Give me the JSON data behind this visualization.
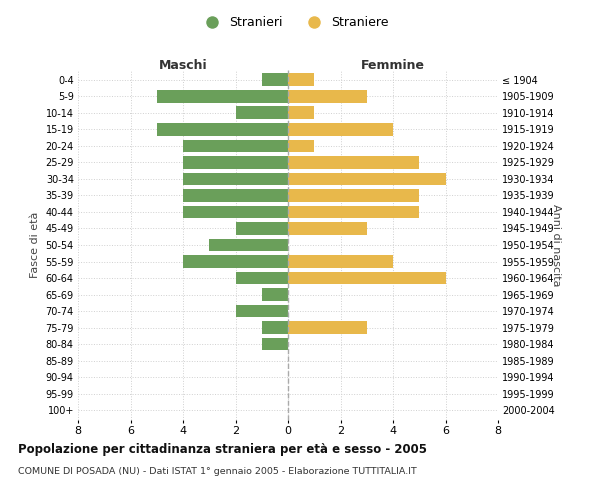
{
  "age_groups": [
    "0-4",
    "5-9",
    "10-14",
    "15-19",
    "20-24",
    "25-29",
    "30-34",
    "35-39",
    "40-44",
    "45-49",
    "50-54",
    "55-59",
    "60-64",
    "65-69",
    "70-74",
    "75-79",
    "80-84",
    "85-89",
    "90-94",
    "95-99",
    "100+"
  ],
  "birth_years": [
    "2000-2004",
    "1995-1999",
    "1990-1994",
    "1985-1989",
    "1980-1984",
    "1975-1979",
    "1970-1974",
    "1965-1969",
    "1960-1964",
    "1955-1959",
    "1950-1954",
    "1945-1949",
    "1940-1944",
    "1935-1939",
    "1930-1934",
    "1925-1929",
    "1920-1924",
    "1915-1919",
    "1910-1914",
    "1905-1909",
    "≤ 1904"
  ],
  "maschi": [
    1,
    5,
    2,
    5,
    4,
    4,
    4,
    4,
    4,
    2,
    3,
    4,
    2,
    1,
    2,
    1,
    1,
    0,
    0,
    0,
    0
  ],
  "femmine": [
    1,
    3,
    1,
    4,
    1,
    5,
    6,
    5,
    5,
    3,
    0,
    4,
    6,
    0,
    0,
    3,
    0,
    0,
    0,
    0,
    0
  ],
  "color_maschi": "#6a9f5a",
  "color_femmine": "#e8b84b",
  "title": "Popolazione per cittadinanza straniera per età e sesso - 2005",
  "subtitle": "COMUNE DI POSADA (NU) - Dati ISTAT 1° gennaio 2005 - Elaborazione TUTTITALIA.IT",
  "label_maschi": "Maschi",
  "label_femmine": "Femmine",
  "ylabel_left": "Fasce di età",
  "ylabel_right": "Anni di nascita",
  "legend_maschi": "Stranieri",
  "legend_femmine": "Straniere",
  "xlim": 8,
  "bg_color": "#ffffff",
  "grid_color": "#d0d0d0"
}
